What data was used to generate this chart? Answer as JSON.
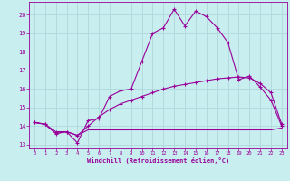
{
  "xlabel": "Windchill (Refroidissement éolien,°C)",
  "bg_color": "#c8eef0",
  "line_color": "#990099",
  "grid_color": "#b0d8dc",
  "xlim": [
    -0.5,
    23.5
  ],
  "ylim": [
    12.8,
    20.7
  ],
  "yticks": [
    13,
    14,
    15,
    16,
    17,
    18,
    19,
    20
  ],
  "xticks": [
    0,
    1,
    2,
    3,
    4,
    5,
    6,
    7,
    8,
    9,
    10,
    11,
    12,
    13,
    14,
    15,
    16,
    17,
    18,
    19,
    20,
    21,
    22,
    23
  ],
  "line1_x": [
    0,
    1,
    2,
    3,
    4,
    5,
    6,
    7,
    8,
    9,
    10,
    11,
    12,
    13,
    14,
    15,
    16,
    17,
    18,
    19,
    20,
    21,
    22,
    23
  ],
  "line1_y": [
    14.2,
    14.1,
    13.6,
    13.7,
    13.1,
    14.3,
    14.4,
    15.6,
    15.9,
    16.0,
    17.5,
    19.0,
    19.3,
    20.3,
    19.4,
    20.2,
    19.9,
    19.3,
    18.5,
    16.5,
    16.7,
    16.1,
    15.4,
    14.0
  ],
  "line2_x": [
    0,
    1,
    2,
    3,
    4,
    5,
    6,
    7,
    8,
    9,
    10,
    11,
    12,
    13,
    14,
    15,
    16,
    17,
    18,
    19,
    20,
    21,
    22,
    23
  ],
  "line2_y": [
    14.2,
    14.1,
    13.6,
    13.7,
    13.5,
    13.8,
    13.8,
    13.8,
    13.8,
    13.8,
    13.8,
    13.8,
    13.8,
    13.8,
    13.8,
    13.8,
    13.8,
    13.8,
    13.8,
    13.8,
    13.8,
    13.8,
    13.8,
    13.9
  ],
  "line3_x": [
    0,
    1,
    2,
    3,
    4,
    5,
    6,
    7,
    8,
    9,
    10,
    11,
    12,
    13,
    14,
    15,
    16,
    17,
    18,
    19,
    20,
    21,
    22,
    23
  ],
  "line3_y": [
    14.2,
    14.1,
    13.7,
    13.7,
    13.5,
    14.0,
    14.5,
    14.9,
    15.2,
    15.4,
    15.6,
    15.8,
    16.0,
    16.15,
    16.25,
    16.35,
    16.45,
    16.55,
    16.6,
    16.65,
    16.6,
    16.3,
    15.8,
    14.1
  ]
}
